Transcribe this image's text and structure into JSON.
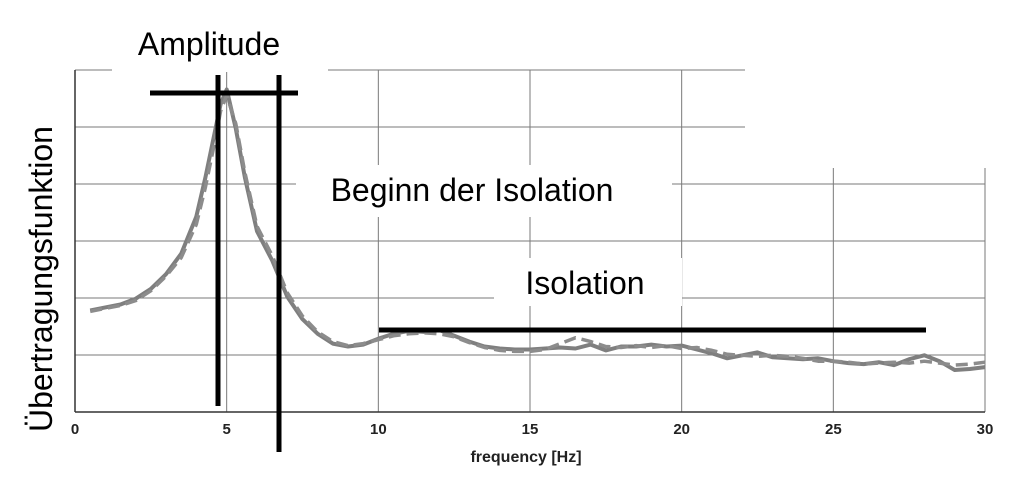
{
  "chart_data": {
    "type": "line",
    "xlabel": "frequency [Hz]",
    "ylabel": "Übertragungsfunktion",
    "xlim": [
      0,
      30
    ],
    "xticks": [
      0,
      5,
      10,
      15,
      20,
      25,
      30
    ],
    "grid": true,
    "series": [
      {
        "x": [
          0.5,
          1,
          1.5,
          2,
          2.5,
          3,
          3.5,
          4,
          4.3,
          4.6,
          4.8,
          5,
          5.3,
          5.6,
          6,
          6.5,
          7,
          7.5,
          8,
          8.5,
          9,
          9.5,
          10,
          10.5,
          11,
          11.5,
          12,
          12.5,
          13,
          13.5,
          14,
          14.5,
          15,
          15.5,
          16,
          16.5,
          17,
          17.5,
          18,
          18.5,
          19,
          19.5,
          20,
          20.5,
          21,
          21.5,
          22,
          22.5,
          23,
          23.5,
          24,
          24.5,
          25,
          25.5,
          26,
          26.5,
          27,
          27.5,
          28,
          28.5,
          29,
          29.5,
          30
        ],
        "values": [
          0.54,
          0.57,
          0.6,
          0.66,
          0.76,
          0.91,
          1.12,
          1.5,
          1.9,
          2.35,
          2.65,
          2.8,
          2.4,
          1.9,
          1.35,
          1.05,
          0.68,
          0.45,
          0.3,
          0.2,
          0.17,
          0.19,
          0.25,
          0.3,
          0.33,
          0.32,
          0.34,
          0.28,
          0.22,
          0.17,
          0.15,
          0.14,
          0.14,
          0.15,
          0.16,
          0.15,
          0.19,
          0.13,
          0.17,
          0.17,
          0.19,
          0.17,
          0.18,
          0.14,
          0.1,
          0.05,
          0.08,
          0.11,
          0.06,
          0.05,
          0.04,
          0.05,
          0.02,
          0.0,
          -0.01,
          0.01,
          -0.02,
          0.04,
          0.08,
          0.02,
          -0.07,
          -0.06,
          -0.04
        ]
      },
      {
        "x": [
          0.5,
          1,
          1.5,
          2,
          2.5,
          3,
          3.5,
          4,
          4.3,
          4.6,
          4.8,
          5,
          5.3,
          5.6,
          6,
          6.5,
          7,
          7.5,
          8,
          8.5,
          9,
          9.5,
          10,
          10.5,
          11,
          11.5,
          12,
          12.5,
          13,
          13.5,
          14,
          14.5,
          15,
          15.5,
          16,
          16.5,
          17,
          17.5,
          18,
          18.5,
          19,
          19.5,
          20,
          20.5,
          21,
          21.5,
          22,
          22.5,
          23,
          23.5,
          24,
          24.5,
          25,
          25.5,
          26,
          26.5,
          27,
          27.5,
          28,
          28.5,
          29,
          29.5,
          30
        ],
        "values": [
          0.53,
          0.56,
          0.59,
          0.64,
          0.74,
          0.89,
          1.08,
          1.42,
          1.8,
          2.25,
          2.58,
          2.74,
          2.45,
          1.95,
          1.4,
          1.1,
          0.72,
          0.48,
          0.32,
          0.22,
          0.18,
          0.2,
          0.24,
          0.28,
          0.3,
          0.31,
          0.3,
          0.27,
          0.21,
          0.16,
          0.13,
          0.12,
          0.12,
          0.14,
          0.2,
          0.26,
          0.22,
          0.17,
          0.16,
          0.18,
          0.16,
          0.18,
          0.15,
          0.16,
          0.13,
          0.09,
          0.08,
          0.07,
          0.08,
          0.07,
          0.05,
          0.02,
          0.02,
          0.01,
          -0.01,
          0.0,
          0.01,
          0.0,
          0.02,
          0.0,
          -0.02,
          -0.01,
          0.01
        ]
      }
    ],
    "annotations": {
      "amplitude": "Amplitude",
      "isolation_begin": "Beginn der Isolation",
      "isolation": "Isolation"
    }
  }
}
